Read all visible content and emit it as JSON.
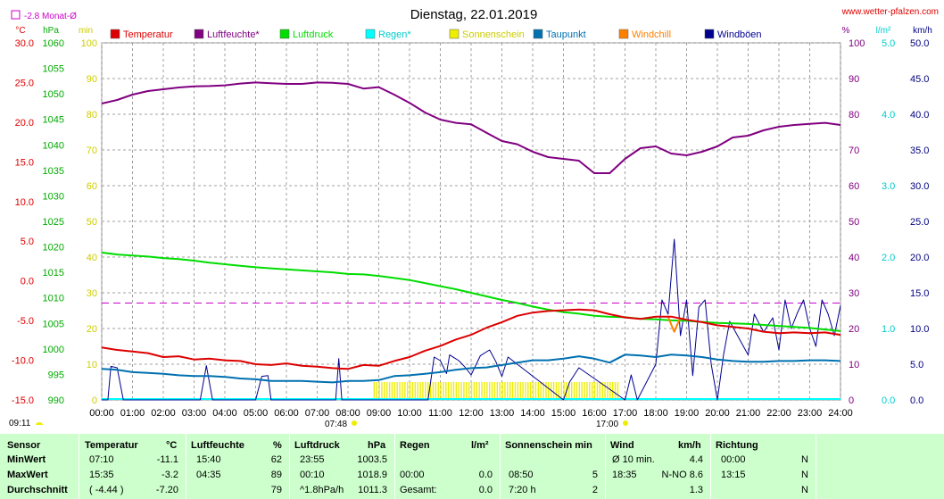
{
  "page": {
    "title": "Dienstag, 22.01.2019",
    "watermark": "www.wetter-pfalzen.com",
    "month_avg": "-2.8 Monat-Ø",
    "sunrise": "07:48",
    "sunset": "17:00",
    "current_time": "09:11"
  },
  "colors": {
    "temperature": "#dd0000",
    "humidity": "#800080",
    "pressure": "#00dd00",
    "rain": "#00ffff",
    "sunshine": "#eeee00",
    "dewpoint": "#0070b0",
    "windchill": "#ff8000",
    "gusts": "#000090",
    "wind": "#000090",
    "month_avg_line": "#cc00cc",
    "grid": "#a0a0a0",
    "stats_bg": "#ccffcc"
  },
  "axes": {
    "temp": {
      "unit": "°C",
      "min": -15,
      "max": 30,
      "step": 5,
      "color": "#dd0000",
      "ticks": [
        "30.0",
        "25.0",
        "20.0",
        "15.0",
        "10.0",
        "5.0",
        "0.0",
        "-5.0",
        "-10.0",
        "-15.0"
      ]
    },
    "pressure": {
      "unit": "hPa",
      "min": 990,
      "max": 1060,
      "step": 5,
      "color": "#00aa00",
      "ticks": [
        "1060",
        "1055",
        "1050",
        "1045",
        "1040",
        "1035",
        "1030",
        "1025",
        "1020",
        "1015",
        "1010",
        "1005",
        "1000",
        "995",
        "990"
      ]
    },
    "sun_minutes": {
      "unit": "min",
      "min": 0,
      "max": 100,
      "color": "#cccc00",
      "ticks": [
        "100",
        "90",
        "80",
        "70",
        "60",
        "50",
        "40",
        "30",
        "20",
        "10",
        "0"
      ]
    },
    "humidity": {
      "unit": "%",
      "min": 0,
      "max": 100,
      "color": "#800080",
      "ticks": [
        "100",
        "90",
        "80",
        "70",
        "60",
        "50",
        "40",
        "30",
        "20",
        "10",
        "0"
      ]
    },
    "rain": {
      "unit": "l/m²",
      "min": 0,
      "max": 5,
      "color": "#00cccc",
      "ticks": [
        "5.0",
        "4.0",
        "3.0",
        "2.0",
        "1.0",
        "0.0"
      ]
    },
    "wind": {
      "unit": "km/h",
      "min": 0,
      "max": 50,
      "color": "#000080",
      "ticks": [
        "50.0",
        "45.0",
        "40.0",
        "35.0",
        "30.0",
        "25.0",
        "20.0",
        "15.0",
        "10.0",
        "5.0",
        "0.0"
      ]
    },
    "x_ticks": [
      "00:00",
      "01:00",
      "02:00",
      "03:00",
      "04:00",
      "05:00",
      "06:00",
      "07:00",
      "08:00",
      "09:00",
      "10:00",
      "11:00",
      "12:00",
      "13:00",
      "14:00",
      "15:00",
      "16:00",
      "17:00",
      "18:00",
      "19:00",
      "20:00",
      "21:00",
      "22:00",
      "23:00",
      "24:00"
    ]
  },
  "legend": [
    {
      "label": "Temperatur",
      "color": "#dd0000"
    },
    {
      "label": "Luftfeuchte*",
      "color": "#800080"
    },
    {
      "label": "Luftdruck",
      "color": "#00dd00"
    },
    {
      "label": "Regen*",
      "color": "#00ffff"
    },
    {
      "label": "Sonnenschein",
      "color": "#eeee00"
    },
    {
      "label": "Taupunkt",
      "color": "#0070b0"
    },
    {
      "label": "Windchill",
      "color": "#ff8000"
    },
    {
      "label": "Windböen",
      "color": "#000090"
    }
  ],
  "chart_data": {
    "type": "line",
    "title": "Dienstag, 22.01.2019",
    "x_unit": "hour",
    "xlim": [
      0,
      24
    ],
    "month_avg_temp": -2.8,
    "series": [
      {
        "name": "Temperatur",
        "axis": "temp",
        "x": [
          0,
          0.5,
          1,
          1.5,
          2,
          2.5,
          3,
          3.5,
          4,
          4.5,
          5,
          5.5,
          6,
          6.5,
          7,
          7.5,
          8,
          8.5,
          9,
          9.5,
          10,
          10.5,
          11,
          11.5,
          12,
          12.5,
          13,
          13.5,
          14,
          14.5,
          15,
          15.5,
          16,
          16.5,
          17,
          17.5,
          18,
          18.5,
          19,
          19.5,
          20,
          20.5,
          21,
          21.5,
          22,
          22.5,
          23,
          23.5,
          24
        ],
        "values": [
          -8.4,
          -8.7,
          -8.9,
          -9.1,
          -9.6,
          -9.5,
          -9.9,
          -9.8,
          -10.0,
          -10.1,
          -10.5,
          -10.6,
          -10.4,
          -10.7,
          -10.8,
          -11.0,
          -11.1,
          -10.6,
          -10.7,
          -10.1,
          -9.6,
          -8.8,
          -8.2,
          -7.4,
          -6.8,
          -5.9,
          -5.2,
          -4.4,
          -4.0,
          -3.8,
          -3.7,
          -3.6,
          -3.7,
          -4.2,
          -4.6,
          -4.8,
          -4.5,
          -4.5,
          -4.9,
          -5.2,
          -5.6,
          -5.8,
          -6.0,
          -6.4,
          -6.6,
          -6.5,
          -6.6,
          -6.5,
          -6.8
        ]
      },
      {
        "name": "Luftfeuchte*",
        "axis": "humidity",
        "x": [
          0,
          0.5,
          1,
          1.5,
          2,
          2.5,
          3,
          3.5,
          4,
          4.5,
          5,
          5.5,
          6,
          6.5,
          7,
          7.5,
          8,
          8.5,
          9,
          9.5,
          10,
          10.5,
          11,
          11.5,
          12,
          12.5,
          13,
          13.5,
          14,
          14.5,
          15,
          15.5,
          16,
          16.5,
          17,
          17.5,
          18,
          18.5,
          19,
          19.5,
          20,
          20.5,
          21,
          21.5,
          22,
          22.5,
          23,
          23.5,
          24
        ],
        "values": [
          83,
          84,
          85.5,
          86.5,
          87,
          87.5,
          87.8,
          87.9,
          88.1,
          88.6,
          88.9,
          88.7,
          88.5,
          88.5,
          88.9,
          88.8,
          88.5,
          87.2,
          87.6,
          85.5,
          83.2,
          80.5,
          78.5,
          77.6,
          77.2,
          74.8,
          72.5,
          71.6,
          69.5,
          68,
          67.5,
          67,
          63.5,
          63.5,
          67.5,
          70.5,
          71,
          69,
          68.5,
          69.5,
          71,
          73.5,
          74,
          75.5,
          76.5,
          77,
          77.3,
          77.6,
          77
        ]
      },
      {
        "name": "Luftdruck",
        "axis": "pressure",
        "x": [
          0,
          0.5,
          1,
          1.5,
          2,
          2.5,
          3,
          3.5,
          4,
          4.5,
          5,
          5.5,
          6,
          6.5,
          7,
          7.5,
          8,
          8.5,
          9,
          9.5,
          10,
          10.5,
          11,
          11.5,
          12,
          12.5,
          13,
          13.5,
          14,
          14.5,
          15,
          15.5,
          16,
          16.5,
          17,
          17.5,
          18,
          18.5,
          19,
          19.5,
          20,
          20.5,
          21,
          21.5,
          22,
          22.5,
          23,
          23.5,
          24
        ],
        "values": [
          1018.9,
          1018.5,
          1018.3,
          1018.1,
          1017.8,
          1017.6,
          1017.3,
          1016.9,
          1016.6,
          1016.3,
          1016.0,
          1015.8,
          1015.6,
          1015.4,
          1015.2,
          1015.0,
          1014.7,
          1014.6,
          1014.3,
          1013.9,
          1013.5,
          1012.9,
          1012.3,
          1011.7,
          1011.0,
          1010.3,
          1009.6,
          1009.0,
          1008.3,
          1007.7,
          1007.2,
          1006.9,
          1006.5,
          1006.3,
          1006.2,
          1005.9,
          1005.8,
          1005.6,
          1005.5,
          1005.3,
          1005.1,
          1005.0,
          1004.9,
          1004.7,
          1004.5,
          1004.3,
          1004.1,
          1003.8,
          1003.5
        ]
      },
      {
        "name": "Taupunkt",
        "axis": "temp",
        "x": [
          0,
          0.5,
          1,
          1.5,
          2,
          2.5,
          3,
          3.5,
          4,
          4.5,
          5,
          5.5,
          6,
          6.5,
          7,
          7.5,
          8,
          8.5,
          9,
          9.5,
          10,
          10.5,
          11,
          11.5,
          12,
          12.5,
          13,
          13.5,
          14,
          14.5,
          15,
          15.5,
          16,
          16.5,
          17,
          17.5,
          18,
          18.5,
          19,
          19.5,
          20,
          20.5,
          21,
          21.5,
          22,
          22.5,
          23,
          23.5,
          24
        ],
        "values": [
          -11.1,
          -11.2,
          -11.5,
          -11.6,
          -11.7,
          -11.9,
          -12.0,
          -12.0,
          -12.1,
          -12.3,
          -12.4,
          -12.6,
          -12.6,
          -12.6,
          -12.7,
          -12.8,
          -12.6,
          -12.6,
          -12.5,
          -12.0,
          -11.9,
          -11.7,
          -11.5,
          -11.2,
          -11.0,
          -10.9,
          -10.6,
          -10.3,
          -10.0,
          -10.0,
          -9.8,
          -9.5,
          -9.8,
          -10.3,
          -9.3,
          -9.4,
          -9.6,
          -9.3,
          -9.4,
          -9.6,
          -9.9,
          -10.1,
          -10.2,
          -10.2,
          -10.1,
          -10.1,
          -10.0,
          -10.0,
          -10.1
        ]
      },
      {
        "name": "Windchill",
        "axis": "temp",
        "x": [
          18.4,
          18.5,
          18.6,
          18.7,
          18.8
        ],
        "values": [
          -4.5,
          -5.5,
          -6.4,
          -5.5,
          -4.6
        ]
      },
      {
        "name": "Windböen",
        "axis": "wind",
        "x": [
          0,
          0.2,
          0.3,
          0.5,
          0.7,
          3.2,
          3.4,
          3.6,
          5.0,
          5.2,
          5.4,
          5.5,
          7.6,
          7.7,
          7.8,
          10.6,
          10.8,
          11.0,
          11.2,
          11.3,
          11.6,
          11.8,
          12.0,
          12.3,
          12.6,
          12.8,
          13.0,
          13.2,
          15.0,
          15.2,
          15.5,
          17.0,
          17.2,
          17.4,
          18.0,
          18.2,
          18.4,
          18.6,
          18.8,
          19.0,
          19.2,
          19.4,
          19.6,
          19.8,
          20.0,
          20.2,
          20.4,
          21.0,
          21.2,
          21.5,
          21.8,
          22.0,
          22.2,
          22.4,
          22.6,
          22.8,
          23.0,
          23.2,
          23.4,
          23.6,
          23.8,
          24.0
        ],
        "values": [
          0,
          0,
          4.7,
          4.5,
          0,
          0,
          4.8,
          0,
          0,
          3.3,
          3.4,
          0,
          0,
          5.8,
          0,
          0,
          6.0,
          5.5,
          3.7,
          6.3,
          5.5,
          4.6,
          3.5,
          6.2,
          7.0,
          5.4,
          3.3,
          6.0,
          0,
          2.5,
          4.5,
          0,
          3.5,
          0,
          5.0,
          14.0,
          12.0,
          22.5,
          9.0,
          14.0,
          3.4,
          13.0,
          14.0,
          5.0,
          0,
          6.3,
          11.0,
          6.3,
          12.0,
          9.5,
          11.5,
          7.0,
          14.0,
          10.0,
          12.2,
          14.0,
          10.0,
          7.5,
          14.0,
          12.0,
          9.0,
          13.2
        ]
      }
    ],
    "sunshine": {
      "axis": "sun_minutes",
      "start": 8.85,
      "end": 16.8,
      "minutes_per_10min": 5
    },
    "rain": {
      "axis": "rain",
      "total": 0.0
    }
  },
  "stats": {
    "headers": {
      "sensor": "Sensor",
      "temp": "Temperatur",
      "temp_unit": "°C",
      "hum": "Luftfeuchte",
      "hum_unit": "%",
      "press": "Luftdruck",
      "press_unit": "hPa",
      "rain": "Regen",
      "rain_unit": "l/m²",
      "sun": "Sonnenschein min",
      "wind": "Wind",
      "wind_unit": "km/h",
      "dir": "Richtung"
    },
    "rows": [
      {
        "label": "MinWert",
        "temp_time": "07:10",
        "temp_val": "-11.1",
        "hum_time": "15:40",
        "hum_val": "62",
        "press_time": "23:55",
        "press_val": "1003.5",
        "rain_time": "",
        "rain_val": "",
        "sun_time": "",
        "sun_val": "",
        "wind_time": "Ø 10 min.",
        "wind_val": "4.4",
        "dir_time": "00:00",
        "dir_val": "N"
      },
      {
        "label": "MaxWert",
        "temp_time": "15:35",
        "temp_val": "-3.2",
        "hum_time": "04:35",
        "hum_val": "89",
        "press_time": "00:10",
        "press_val": "1018.9",
        "rain_time": "00:00",
        "rain_val": "0.0",
        "sun_time": "08:50",
        "sun_val": "5",
        "wind_time": "18:35",
        "wind_val": "N-NO 8.6",
        "dir_time": "13:15",
        "dir_val": "N"
      },
      {
        "label": "Durchschnitt",
        "temp_time": "( -4.44 )",
        "temp_val": "-7.20",
        "hum_time": "",
        "hum_val": "79",
        "press_time": "^1.8hPa/h",
        "press_val": "1011.3",
        "rain_time": "Gesamt:",
        "rain_val": "0.0",
        "sun_time": "7:20 h",
        "sun_val": "2",
        "wind_time": "",
        "wind_val": "1.3",
        "dir_time": "",
        "dir_val": "N"
      }
    ]
  }
}
